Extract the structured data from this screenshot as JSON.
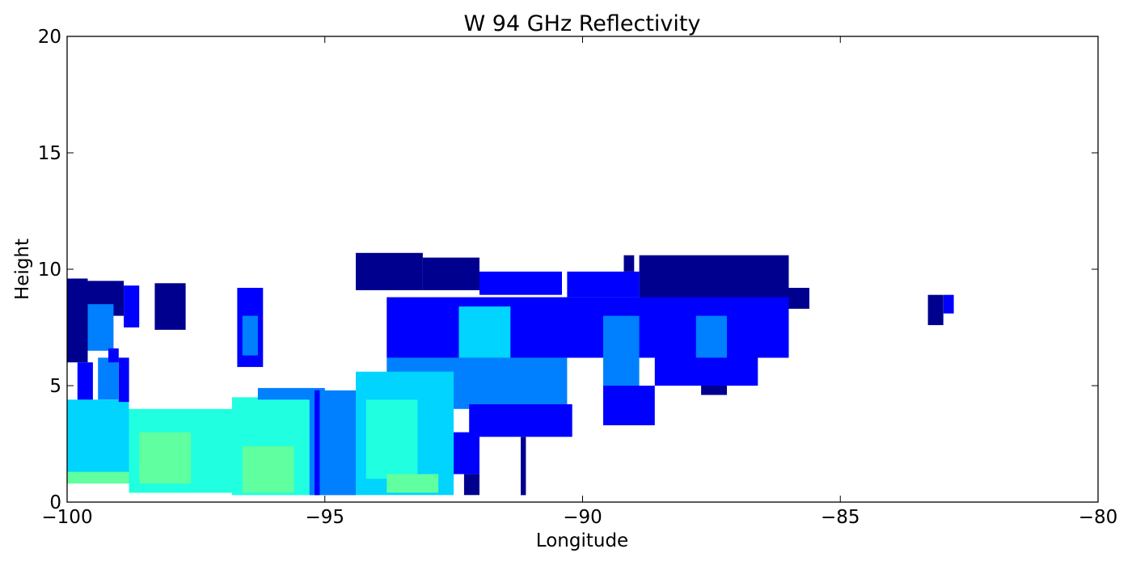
{
  "chart_data": {
    "type": "heatmap",
    "title": "W 94 GHz Reflectivity",
    "xlabel": "Longitude",
    "ylabel": "Height",
    "xlim": [
      -100,
      -80
    ],
    "ylim": [
      0,
      20
    ],
    "x_ticks": [
      -100,
      -95,
      -90,
      -85,
      -80
    ],
    "y_ticks": [
      0,
      5,
      10,
      15,
      20
    ],
    "x_tick_labels": [
      "−100",
      "−95",
      "−90",
      "−85",
      "−80"
    ],
    "y_tick_labels": [
      "0",
      "5",
      "10",
      "15",
      "20"
    ],
    "grid": false,
    "colormap": "jet",
    "colors": {
      "dark_blue": "#00008f",
      "blue": "#0000ff",
      "light_blue": "#0080ff",
      "cyan": "#00d4ff",
      "aqua": "#20ffdf",
      "light_green": "#60ff9f"
    },
    "regions": [
      {
        "x": [
          -100,
          -99.6
        ],
        "y": [
          6,
          9.6
        ],
        "level": "dark_blue"
      },
      {
        "x": [
          -99.6,
          -98.9
        ],
        "y": [
          8.0,
          9.5
        ],
        "level": "dark_blue"
      },
      {
        "x": [
          -99.6,
          -99.1
        ],
        "y": [
          6.5,
          8.5
        ],
        "level": "light_blue"
      },
      {
        "x": [
          -98.9,
          -98.6
        ],
        "y": [
          7.5,
          9.3
        ],
        "level": "blue"
      },
      {
        "x": [
          -98.3,
          -97.7
        ],
        "y": [
          7.4,
          9.4
        ],
        "level": "dark_blue"
      },
      {
        "x": [
          -96.7,
          -96.2
        ],
        "y": [
          5.8,
          9.2
        ],
        "level": "blue"
      },
      {
        "x": [
          -96.6,
          -96.3
        ],
        "y": [
          6.3,
          8.0
        ],
        "level": "light_blue"
      },
      {
        "x": [
          -94.4,
          -93.1
        ],
        "y": [
          9.1,
          10.7
        ],
        "level": "dark_blue"
      },
      {
        "x": [
          -93.1,
          -92.0
        ],
        "y": [
          9.1,
          10.5
        ],
        "level": "dark_blue"
      },
      {
        "x": [
          -92.0,
          -90.4
        ],
        "y": [
          8.9,
          9.9
        ],
        "level": "blue"
      },
      {
        "x": [
          -90.3,
          -88.9
        ],
        "y": [
          8.8,
          9.9
        ],
        "level": "blue"
      },
      {
        "x": [
          -88.9,
          -86.0
        ],
        "y": [
          8.4,
          10.6
        ],
        "level": "dark_blue"
      },
      {
        "x": [
          -86.0,
          -85.6
        ],
        "y": [
          8.3,
          9.2
        ],
        "level": "dark_blue"
      },
      {
        "x": [
          -89.2,
          -89.0
        ],
        "y": [
          9.9,
          10.6
        ],
        "level": "dark_blue"
      },
      {
        "x": [
          -93.8,
          -86.0
        ],
        "y": [
          6.2,
          8.8
        ],
        "level": "blue"
      },
      {
        "x": [
          -92.4,
          -91.4
        ],
        "y": [
          5.6,
          8.4
        ],
        "level": "cyan"
      },
      {
        "x": [
          -89.6,
          -88.9
        ],
        "y": [
          5.0,
          8.0
        ],
        "level": "light_blue"
      },
      {
        "x": [
          -87.8,
          -87.2
        ],
        "y": [
          5.5,
          8.0
        ],
        "level": "light_blue"
      },
      {
        "x": [
          -93.8,
          -90.3
        ],
        "y": [
          4.0,
          6.2
        ],
        "level": "light_blue"
      },
      {
        "x": [
          -88.6,
          -86.6
        ],
        "y": [
          5.0,
          6.2
        ],
        "level": "blue"
      },
      {
        "x": [
          -89.6,
          -88.6
        ],
        "y": [
          3.3,
          5.0
        ],
        "level": "blue"
      },
      {
        "x": [
          -87.7,
          -87.2
        ],
        "y": [
          4.6,
          5.0
        ],
        "level": "dark_blue"
      },
      {
        "x": [
          -92.2,
          -90.2
        ],
        "y": [
          2.8,
          4.2
        ],
        "level": "blue"
      },
      {
        "x": [
          -92.7,
          -92.0
        ],
        "y": [
          1.2,
          3.0
        ],
        "level": "blue"
      },
      {
        "x": [
          -92.3,
          -92.0
        ],
        "y": [
          0.3,
          1.2
        ],
        "level": "dark_blue"
      },
      {
        "x": [
          -91.2,
          -91.1
        ],
        "y": [
          0.3,
          2.8
        ],
        "level": "dark_blue"
      },
      {
        "x": [
          -94.4,
          -92.5
        ],
        "y": [
          0.3,
          5.6
        ],
        "level": "cyan"
      },
      {
        "x": [
          -94.2,
          -93.2
        ],
        "y": [
          1.0,
          4.4
        ],
        "level": "aqua"
      },
      {
        "x": [
          -93.8,
          -92.8
        ],
        "y": [
          0.4,
          1.2
        ],
        "level": "light_green"
      },
      {
        "x": [
          -95.3,
          -94.4
        ],
        "y": [
          0.3,
          4.8
        ],
        "level": "light_blue"
      },
      {
        "x": [
          -96.8,
          -95.3
        ],
        "y": [
          0.3,
          4.5
        ],
        "level": "aqua"
      },
      {
        "x": [
          -96.6,
          -95.6
        ],
        "y": [
          0.4,
          2.4
        ],
        "level": "light_green"
      },
      {
        "x": [
          -98.8,
          -96.8
        ],
        "y": [
          0.4,
          4.0
        ],
        "level": "aqua"
      },
      {
        "x": [
          -98.6,
          -97.6
        ],
        "y": [
          0.8,
          3.0
        ],
        "level": "light_green"
      },
      {
        "x": [
          -100,
          -98.8
        ],
        "y": [
          0.8,
          4.4
        ],
        "level": "cyan"
      },
      {
        "x": [
          -100,
          -98.8
        ],
        "y": [
          0.8,
          1.3
        ],
        "level": "light_green"
      },
      {
        "x": [
          -99.4,
          -99.0
        ],
        "y": [
          4.4,
          6.2
        ],
        "level": "light_blue"
      },
      {
        "x": [
          -99.2,
          -99.0
        ],
        "y": [
          6.0,
          6.6
        ],
        "level": "blue"
      },
      {
        "x": [
          -99.0,
          -98.8
        ],
        "y": [
          4.3,
          6.2
        ],
        "level": "blue"
      },
      {
        "x": [
          -99.8,
          -99.5
        ],
        "y": [
          4.4,
          6.0
        ],
        "level": "blue"
      },
      {
        "x": [
          -96.3,
          -95.0
        ],
        "y": [
          4.4,
          4.9
        ],
        "level": "light_blue"
      },
      {
        "x": [
          -95.2,
          -95.1
        ],
        "y": [
          0.3,
          4.8
        ],
        "level": "blue"
      },
      {
        "x": [
          -83.0,
          -82.8
        ],
        "y": [
          8.1,
          8.9
        ],
        "level": "blue"
      },
      {
        "x": [
          -83.3,
          -83.0
        ],
        "y": [
          7.6,
          8.9
        ],
        "level": "dark_blue"
      }
    ]
  }
}
